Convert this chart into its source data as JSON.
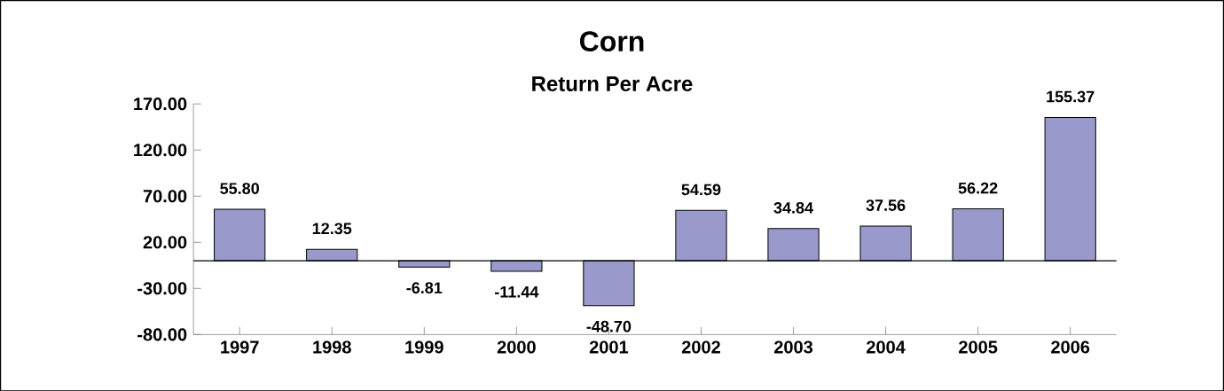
{
  "chart_data": {
    "type": "bar",
    "title": "Corn",
    "subtitle": "Return Per Acre",
    "categories": [
      "1997",
      "1998",
      "1999",
      "2000",
      "2001",
      "2002",
      "2003",
      "2004",
      "2005",
      "2006"
    ],
    "values": [
      55.8,
      12.35,
      -6.81,
      -11.44,
      -48.7,
      54.59,
      34.84,
      37.56,
      56.22,
      155.37
    ],
    "value_labels": [
      "55.80",
      "12.35",
      "-6.81",
      "-11.44",
      "-48.70",
      "54.59",
      "34.84",
      "37.56",
      "56.22",
      "155.37"
    ],
    "color": "#9999cc",
    "ylim": [
      -80,
      170
    ],
    "yticks": [
      {
        "value": -80,
        "label": "-80.00"
      },
      {
        "value": -30,
        "label": "-30.00"
      },
      {
        "value": 20,
        "label": "20.00"
      },
      {
        "value": 70,
        "label": "70.00"
      },
      {
        "value": 120,
        "label": "120.00"
      },
      {
        "value": 170,
        "label": "170.00"
      }
    ],
    "grid": false
  }
}
